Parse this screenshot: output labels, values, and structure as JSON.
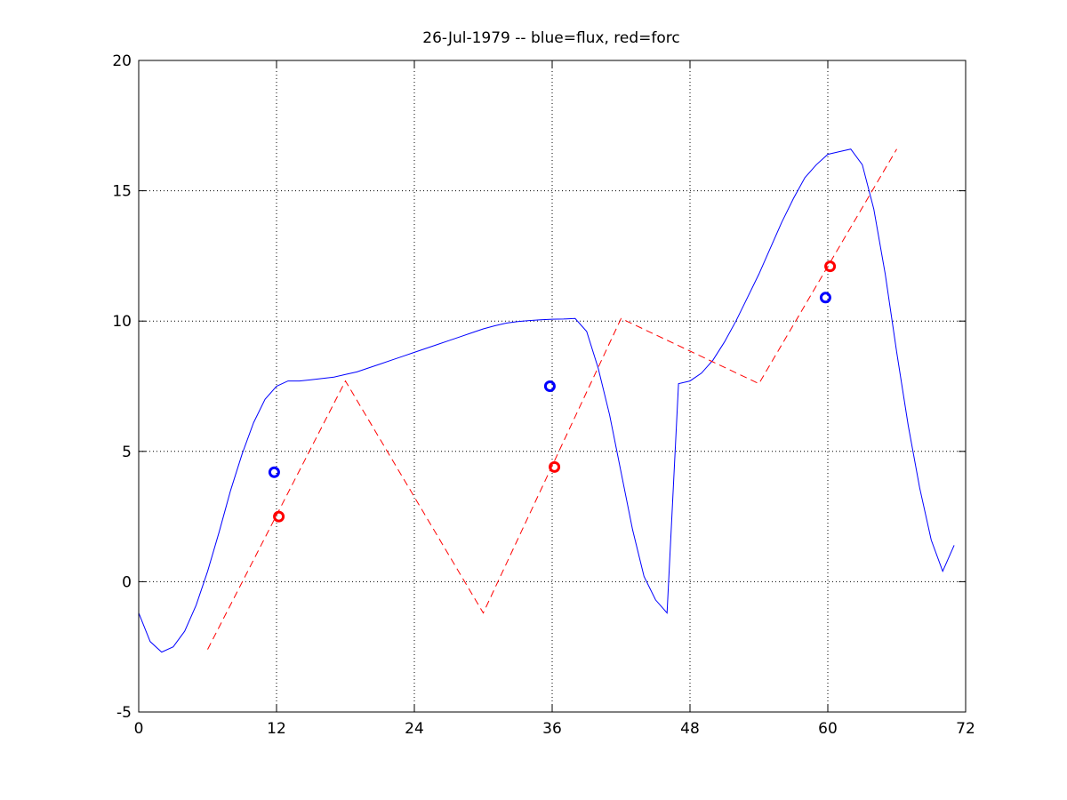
{
  "chart_data": {
    "type": "line",
    "title": "26-Jul-1979 -- blue=flux, red=forc",
    "xlabel": "",
    "ylabel": "",
    "xlim": [
      0,
      72
    ],
    "ylim": [
      -5,
      20
    ],
    "xticks": [
      0,
      12,
      24,
      36,
      48,
      60,
      72
    ],
    "yticks": [
      -5,
      0,
      5,
      10,
      15,
      20
    ],
    "grid": true,
    "series": [
      {
        "color": "#0000ff",
        "style": "solid",
        "x": [
          0,
          1,
          2,
          3,
          4,
          5,
          6,
          7,
          8,
          9,
          10,
          11,
          12,
          13,
          14,
          15,
          16,
          17,
          18,
          19,
          20,
          21,
          22,
          23,
          24,
          25,
          26,
          27,
          28,
          29,
          30,
          31,
          32,
          33,
          34,
          35,
          36,
          37,
          38,
          39,
          40,
          41,
          42,
          43,
          44,
          45,
          46,
          47,
          48,
          49,
          50,
          51,
          52,
          53,
          54,
          55,
          56,
          57,
          58,
          59,
          60,
          61,
          62,
          63,
          64,
          65,
          66,
          67,
          68,
          69,
          70,
          71
        ],
        "y": [
          -1.2,
          -2.3,
          -2.7,
          -2.5,
          -1.9,
          -0.9,
          0.4,
          1.9,
          3.5,
          4.9,
          6.1,
          7.0,
          7.5,
          7.7,
          7.7,
          7.75,
          7.8,
          7.85,
          7.95,
          8.05,
          8.2,
          8.35,
          8.5,
          8.65,
          8.8,
          8.95,
          9.1,
          9.25,
          9.4,
          9.55,
          9.7,
          9.82,
          9.92,
          9.98,
          10.02,
          10.05,
          10.07,
          10.08,
          10.1,
          9.6,
          8.2,
          6.4,
          4.2,
          2.0,
          0.2,
          -0.7,
          -1.2,
          7.6,
          7.7,
          8.0,
          8.5,
          9.2,
          10.0,
          10.9,
          11.8,
          12.8,
          13.8,
          14.7,
          15.5,
          16.0,
          16.4,
          16.5,
          16.6,
          16.0,
          14.3,
          11.8,
          8.8,
          6.0,
          3.6,
          1.6,
          0.4,
          1.4
        ]
      },
      {
        "color": "#ff0000",
        "style": "dashed",
        "x": [
          6,
          18,
          30,
          42,
          54,
          66
        ],
        "y": [
          -2.6,
          7.7,
          -1.2,
          10.1,
          7.6,
          16.6
        ]
      }
    ],
    "markers": [
      {
        "color": "#0000ff",
        "x": 11.8,
        "y": 4.2
      },
      {
        "color": "#ff0000",
        "x": 12.2,
        "y": 2.5
      },
      {
        "color": "#0000ff",
        "x": 35.8,
        "y": 7.5
      },
      {
        "color": "#ff0000",
        "x": 36.2,
        "y": 4.4
      },
      {
        "color": "#0000ff",
        "x": 59.8,
        "y": 10.9
      },
      {
        "color": "#ff0000",
        "x": 60.2,
        "y": 12.1
      }
    ]
  }
}
